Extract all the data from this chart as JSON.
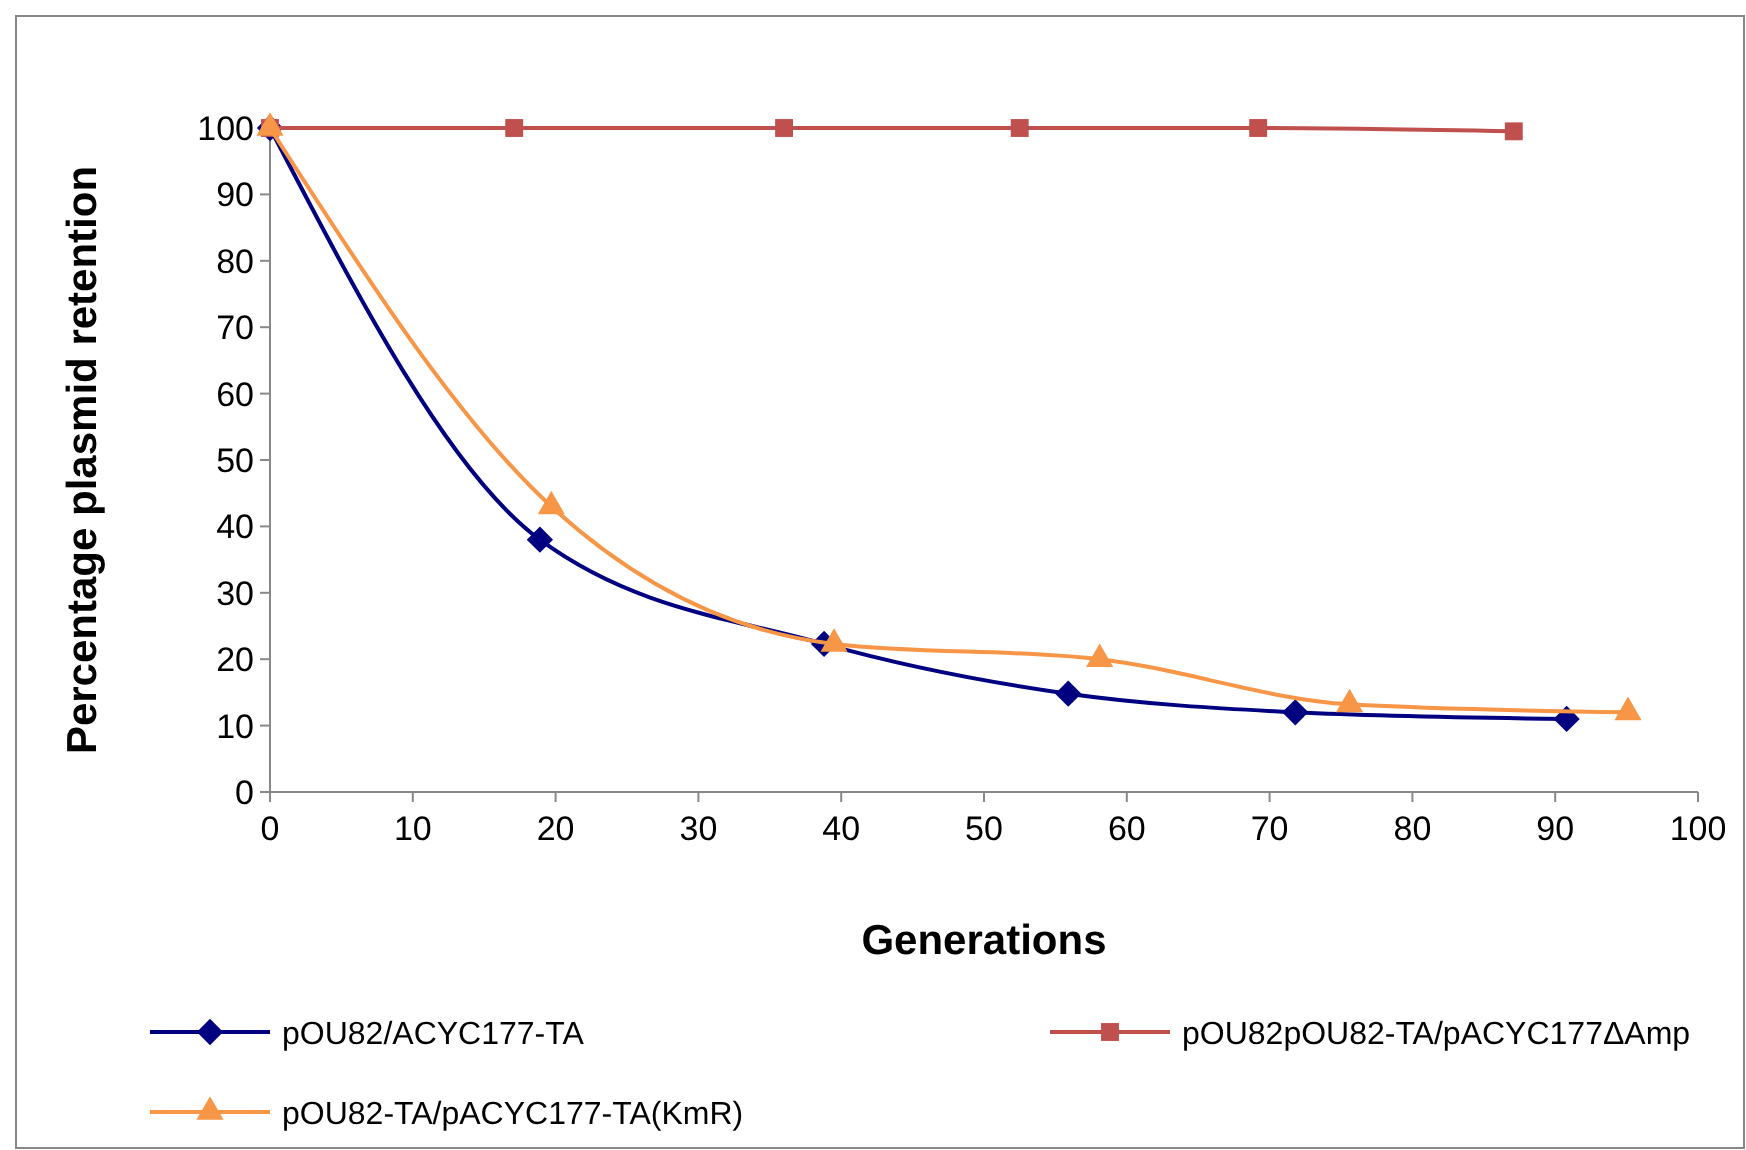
{
  "chart_data": {
    "type": "line",
    "xlabel": "Generations",
    "ylabel": "Percentage plasmid retention",
    "xlim": [
      0,
      100
    ],
    "xticks": [
      0,
      10,
      20,
      30,
      40,
      50,
      60,
      70,
      80,
      90,
      100
    ],
    "ylim": [
      0,
      100
    ],
    "yticks": [
      0,
      10,
      20,
      30,
      40,
      50,
      60,
      70,
      80,
      90,
      100
    ],
    "grid": false,
    "legend": "bottom",
    "series": [
      {
        "name": "pOU82/ACYC177-TA",
        "color": "#000080",
        "marker": "diamond",
        "x": [
          0,
          18.9,
          38.8,
          55.9,
          71.8,
          90.8
        ],
        "values": [
          100,
          38,
          22.3,
          14.8,
          12,
          11
        ]
      },
      {
        "name": "pOU82pOU82-TA/pACYC177ΔAmp",
        "color": "#c0504d",
        "marker": "square",
        "x": [
          0,
          17.1,
          36,
          52.5,
          69.2,
          87.1
        ],
        "values": [
          100,
          100,
          100,
          100,
          100,
          99.5
        ]
      },
      {
        "name": "pOU82-TA/pACYC177-TA(KmR)",
        "color": "#f79646",
        "marker": "triangle",
        "x": [
          0,
          19.7,
          39.5,
          58.1,
          75.6,
          95.1
        ],
        "values": [
          100,
          43,
          22.3,
          20,
          13.2,
          12
        ]
      }
    ]
  }
}
